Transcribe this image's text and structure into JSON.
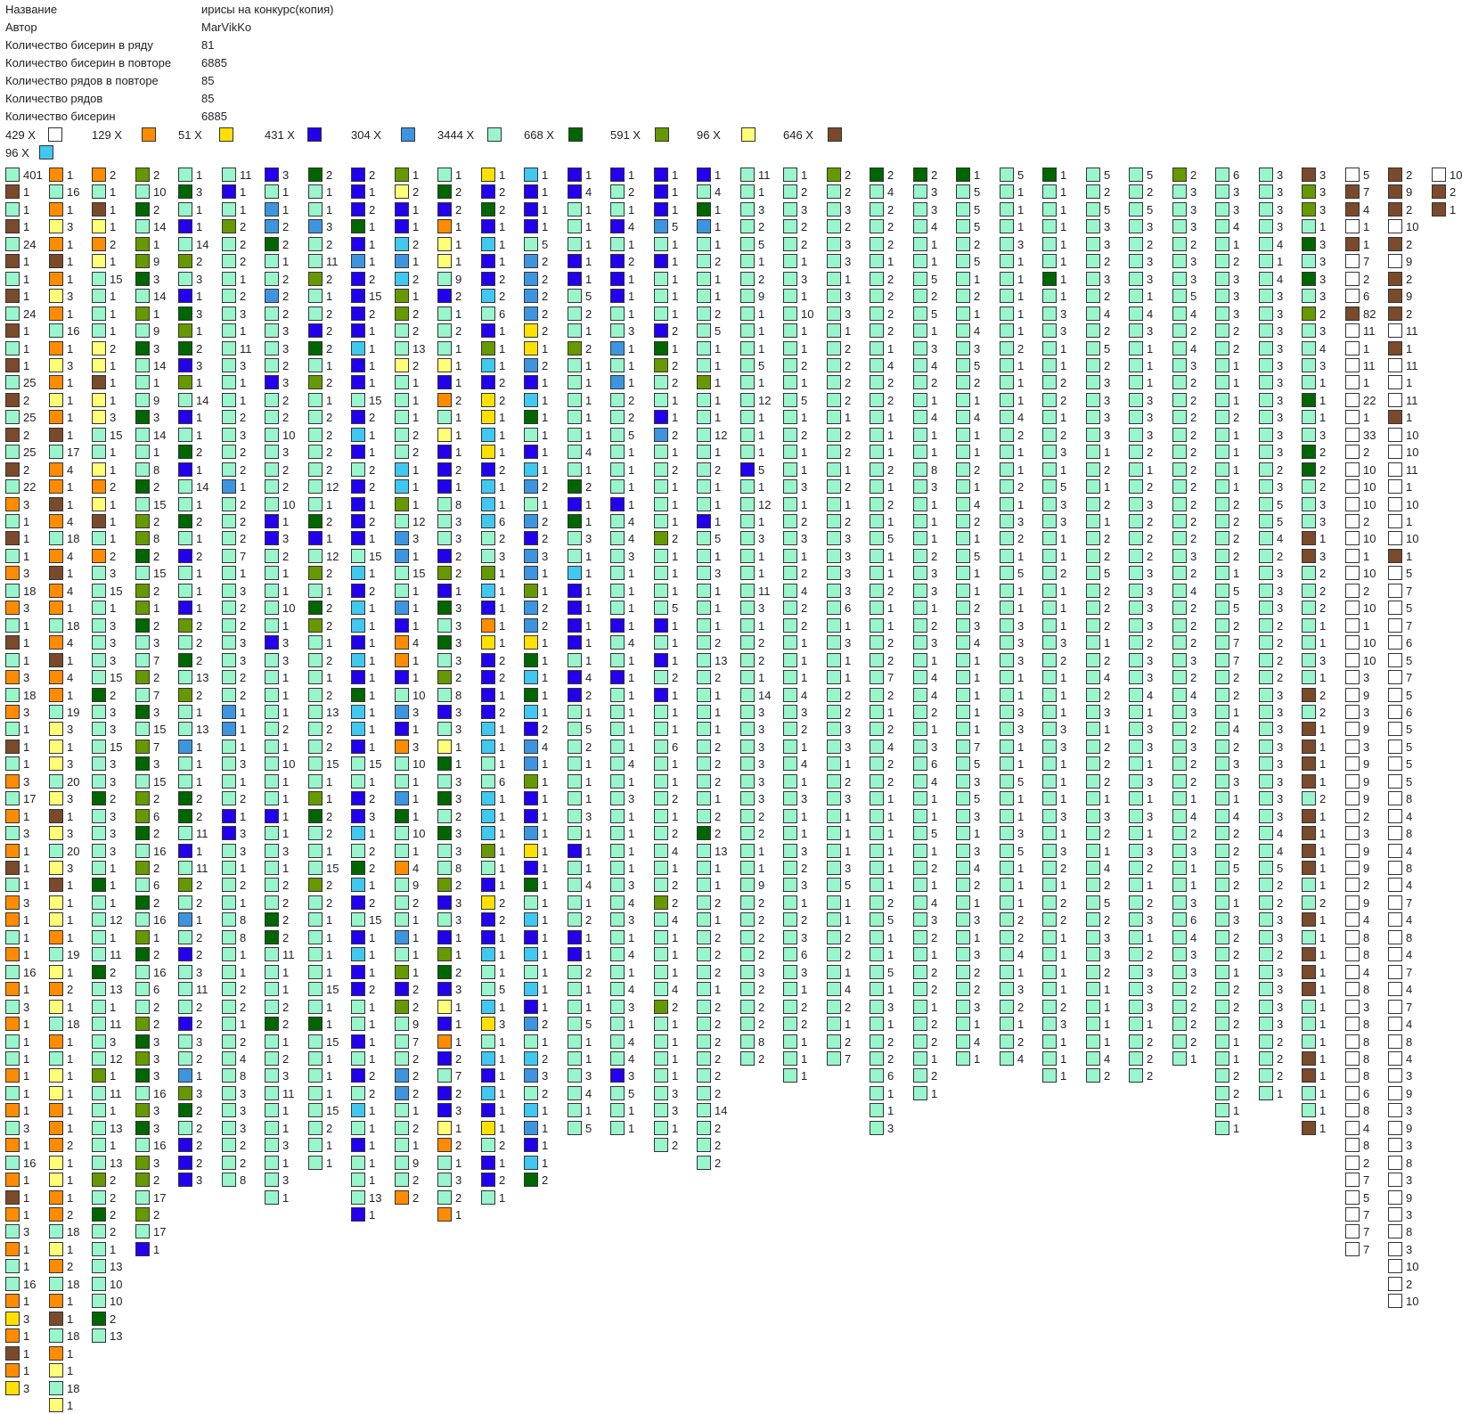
{
  "info": [
    {
      "label": "Название",
      "value": "ирисы на конкурс(копия)"
    },
    {
      "label": "Автор",
      "value": "MarVikKo"
    },
    {
      "label": "Количество бисерин в ряду",
      "value": "81"
    },
    {
      "label": "Количество бисерин в повторе",
      "value": "6885"
    },
    {
      "label": "Количество рядов в повторе",
      "value": "85"
    },
    {
      "label": "Количество рядов",
      "value": "85"
    },
    {
      "label": "Количество бисерин",
      "value": "6885"
    }
  ],
  "palette": {
    "W": "#ffffff",
    "O": "#ff8c00",
    "Y": "#ffe000",
    "B": "#2200ee",
    "S": "#3d95e0",
    "M": "#99f5cc",
    "D": "#006600",
    "G": "#669900",
    "P": "#ffff77",
    "C": "#40c8f0",
    "R": "#7a4a2a"
  },
  "legend": [
    {
      "count": "429 X",
      "color": "W"
    },
    {
      "count": "129 X",
      "color": "O"
    },
    {
      "count": "51 X",
      "color": "Y"
    },
    {
      "count": "431 X",
      "color": "B"
    },
    {
      "count": "304 X",
      "color": "S"
    },
    {
      "count": "3444 X",
      "color": "M"
    },
    {
      "count": "668 X",
      "color": "D"
    },
    {
      "count": "591 X",
      "color": "G"
    },
    {
      "count": "96 X",
      "color": "P"
    },
    {
      "count": "646 X",
      "color": "R"
    },
    {
      "count": "96 X",
      "color": "C"
    }
  ],
  "columns": [
    "M401 R1 M1 R1 M24 R1 M1 R1 M24 R1 M1 R1 M25 R2 M25 R2 M25 R2 M22 O3 M1 R1 M1 O3 M18 O3 M1 R1 M1 O3 M18 O3 M1 R1 M1 O3 M17 O1 M3 O1 R1 M1 O3 O1 M1 O1 M16 O1 M3 O1 M1 M1 O1 M1 O1 M3 O1 M16 O1 R1 O1 M3 O1 M1 M16 O1 Y3 O1 R1 O1 Y3",
    "O1 M16 O1 P3 O1 R1 O1 P3 O1 M16 O1 P3 O1 P1 O1 R1 M17 O4 O1 R1 O4 M18 O4 R1 O4 O1 M18 O4 R1 O4 O1 M19 P3 P1 P3 M20 P3 R1 P3 M20 P3 R1 P1 P1 O1 M19 P1 O2 P1 M18 O1 M1 P1 P1 O1 O1 O2 P1 P1 O1 O2 M18 P1 O2 M18 O1 R1 M18 O1 P1 M18 P1",
    "O2 M1 R1 P1 O2 P1 M15 M1 M1 M1 P2 P1 R1 P1 P3 M15 M1 P1 O2 P1 R1 M1 O2 M3 M15 M1 M3 M3 M3 M15 D2 M3 M3 M15 M3 M3 D2 M3 M3 M3 M1 D1 M1 M12 M1 M11 D2 M13 M1 M11 M3 M12 G1 M11 M1 M13 M1 M13 G2 M2 D2 M2 M1 M13 M10 M10 D2 M13",
    "G2 M10 D2 M14 G1 G9 D3 M14 G1 M9 D3 M14 M1 M9 D3 M14 M1 M8 D2 M15 G2 G8 D2 M15 G2 G1 D2 M3 M7 G2 M7 D3 M15 G7 D3 M15 G2 G6 D2 M16 G2 M6 D2 M16 G1 D2 M16 M6 M2 G2 D3 G3 D3 M16 G3 D3 M16 G3 G2 M17 G2 M17 B1",
    "M1 D3 M1 B1 M14 G2 M3 B1 D3 G1 D2 B3 G1 M14 B1 M1 D2 B1 M14 M1 D2 M1 B2 M1 M1 B1 G2 M2 D2 M13 G2 M1 M13 S1 M1 M1 D2 D2 M11 B1 M11 G2 M2 S1 M2 B2 M3 M11 M2 B2 M3 M2 S1 G3 D2 M2 B2 B2 B3",
    "M11 B1 M1 G2 M2 M2 M1 M2 M3 M1 M11 M3 M1 M1 M2 M3 M2 M2 S1 M2 M2 M2 M7 M1 M3 M2 M2 M3 M3 M2 M2 S1 S1 M1 M3 M1 M2 B1 B3 M3 M1 M2 M1 M8 M8 M1 M1 M2 M2 M1 M2 M4 M8 M3 M3 M3 M2 M2 M8",
    "B3 M1 S1 S2 D2 M1 M2 S2 M2 M3 M3 M2 B3 M2 M2 M10 M3 M2 M2 M10 B1 B3 M2 M1 M1 M10 M1 B3 M3 M1 M1 M1 M2 M1 M10 M1 M1 B1 M1 M3 M1 M2 M2 D2 D2 M11 M1 M1 M2 D2 M1 M2 M3 M11 M1 M1 M3 M1 M3 M1",
    "D2 M1 M1 S3 M2 M11 G2 M1 M2 B2 D2 M1 G2 M1 M2 M2 M2 M2 M12 M1 D2 B1 M12 G2 M1 D2 G2 M1 M2 M1 M2 M13 M2 M2 M15 M1 G1 D2 M2 M1 M15 G2 M2 M1 M1 M1 M1 M15 M1 D1 M15 M1 M1 M1 M15 M2 M1 M1",
    "B2 B1 B2 D1 B1 S1 B2 B15 B2 B1 C1 B1 B1 M15 B2 C1 B1 M2 B2 B1 B2 B1 M15 C1 B2 C1 C1 B1 C1 B1 D1 C1 C1 B1 M15 M1 B2 B3 C1 M2 D2 C1 B2 M15 B1 C1 B1 B2 M1 M1 B1 M1 B2 M2 C1 M1 B1 M1 M1 M13 B1",
    "G1 P2 B1 B1 C2 S1 C2 G1 G2 M2 M13 P2 M1 M1 M1 M2 M2 C1 C1 G1 M12 S3 S1 M15 M1 S1 B1 O4 O1 B1 M10 S3 B1 O3 M10 M1 S1 D1 M10 M1 O4 M9 M2 M1 S1 M1 G1 B2 G2 M9 M7 M2 S2 S2 M1 M2 M1 M9 M2 O2",
    "M1 D2 B2 O1 P1 P1 M9 B2 M1 M2 M1 P1 B1 O2 M1 P1 B1 B2 B1 M8 M3 M3 B2 G2 B1 D3 M3 D3 M3 G2 M8 B3 M3 P1 D1 M3 D3 M2 D3 M3 M8 G2 B3 M3 B1 G1 D2 B3 P1 B1 O1 B2 M7 B2 B3 P1 O2 M1 M3 M2 O1",
    "Y1 B2 D2 B1 C1 B1 B2 C2 M6 B1 G1 C1 B2 Y2 Y1 C1 Y1 B2 C1 C1 C6 M2 M3 G1 C1 B1 O1 Y1 B2 B2 B1 B2 C1 C1 M1 M6 C1 C1 C1 G1 M1 B1 Y2 B2 B1 C1 M1 M5 C1 Y3 M1 C1 B1 C1 B1 Y1 M2 B1 B2 M1",
    "C1 B1 B1 B1 M5 S2 S2 S2 S2 Y2 Y1 S2 B1 C1 D1 M1 B1 C1 S2 M1 S2 B2 S3 S1 G1 S2 S2 Y1 D1 C1 D1 C1 B2 S4 S1 G1 B1 B1 S1 Y1 B1 D1 M1 C1 B1 C1 M1 C1 B1 S2 M1 C2 S3 M2 C1 S1 B1 C1 D2",
    "B1 B4 M1 M1 M1 B1 B1 M5 M2 M1 G2 M1 M1 M1 M1 M1 M4 M1 D2 B1 D1 M3 M1 C1 B1 B1 B1 B1 M1 B4 B2 M1 M5 M2 M1 M1 M1 M3 M1 B1 M1 M4 M1 M2 B1 B1 M2 M1 M1 M5 M1 M1 M3 M4 M1 M5",
    "B1 M2 M1 B4 M1 B2 B1 B1 M1 M3 S1 M1 S1 M2 M2 M5 M1 M1 M1 B1 M4 M4 M3 M1 M1 M1 B1 M4 M1 B1 M1 M1 M1 M1 M4 M1 M3 M1 M1 M1 M1 M3 M4 M3 M1 M4 M1 M4 M3 M1 M4 M4 B3 M5 M1 M1",
    "B1 B1 B1 S5 M1 B1 M1 M1 M1 B2 D1 G2 M2 M1 B1 S2 M1 M2 M1 M1 M1 G2 M1 M1 M1 M5 B1 M1 B1 M2 B1 M1 M1 M6 M1 M1 M2 M1 M2 M4 M1 M2 G2 M4 M1 M1 M1 M4 G2 M1 M1 M1 M1 M3 M3 M1 M2",
    "B1 M4 D1 S1 M1 M2 M1 M1 M2 M5 M1 M1 G1 M1 M1 M12 M1 M2 M1 M1 B1 M5 M1 M3 M1 M1 M1 M2 M13 M2 M1 M1 M1 M2 M2 M2 M1 M2 D2 M13 M1 M1 M2 M1 M2 M2 M2 M1 M2 M2 M2 M2 M2 M2 M14 M2 M2 M2",
    "M11 M1 M3 M2 M5 M1 M2 M9 M1 M1 M1 M5 M1 M12 M1 M1 M1 B5 M1 M12 M1 M3 M1 M1 M11 M3 M1 M2 M2 M1 M14 M3 M3 M3 M3 M3 M3 M2 M2 M1 M1 M9 M2 M2 M2 M2 M3 M2 M2 M2 M8 M2",
    "M1 M2 M3 M2 M2 M1 M3 M1 M10 M1 M1 M2 M1 M5 M1 M2 M1 M1 M3 M1 M2 M3 M1 M2 M4 M2 M2 M1 M1 M1 M4 M3 M2 M1 M4 M1 M3 M1 M1 M3 M2 M3 M1 M2 M3 M6 M3 M1 M2 M2 M1 M1 M1",
    "G2 M2 M3 M2 M3 M3 M1 M3 M3 M1 M2 M2 M2 M2 M1 M2 M2 M1 M2 M1 M2 M3 M3 M3 M3 M6 M1 M3 M1 M1 M2 M2 M3 M3 M1 M2 M3 M1 M1 M1 M3 M5 M1 M1 M2 M2 M1 M4 M2 M1 M2 M7",
    "D2 M4 M2 M2 M2 M1 M2 M2 M2 M2 M1 M4 M2 M2 M1 M1 M1 M2 M1 M2 M1 M5 M1 M1 M2 M1 M1 M2 M2 M7 M2 M1 M2 M4 M2 M2 M1 M1 M1 M1 M1 M1 M2 M5 M1 M1 M5 M1 M3 M1 M2 M2 M6 M1 M1 M3",
    "D2 M3 M3 M4 M1 M1 M5 M2 M5 M1 M3 M4 M2 M1 M4 M1 M1 M8 M3 M1 M1 M1 M2 M3 M3 M1 M2 M3 M1 M4 M4 M2 M1 M3 M6 M4 M1 M1 M5 M1 M2 M1 M4 M3 M2 M1 M2 M2 M1 M2 M2 M1 M2 M1",
    "D1 M5 M5 M5 M2 M5 M1 M2 M1 M4 M3 M5 M2 M1 M4 M1 M1 M2 M1 M4 M2 M1 M5 M1 M1 M2 M3 M4 M1 M1 M1 M1 M1 M7 M5 M3 M5 M3 M1 M3 M4 M2 M1 M3 M1 M3 M2 M2 M3 M1 M4 M1",
    "M5 M1 M1 M1 M3 M1 M1 M1 M1 M1 M2 M1 M1 M1 M4 M2 M1 M1 M2 M1 M3 M2 M1 M5 M1 M1 M3 M3 M3 M1 M1 M3 M3 M1 M1 M5 M1 M1 M3 M5 M1 M1 M1 M2 M2 M4 M1 M3 M2 M1 M2 M4",
    "D1 M1 M1 M1 M1 M1 D1 M1 M3 M3 M1 M1 M2 M2 M1 M2 M3 M1 M5 M3 M3 M1 M1 M2 M1 M1 M1 M3 M2 M1 M1 M1 M3 M3 M1 M1 M1 M3 M1 M3 M2 M1 M2 M2 M1 M1 M1 M1 M2 M3 M1 M1 M1",
    "M5 M2 M5 M3 M3 M2 M3 M2 M4 M2 M5 M2 M3 M3 M3 M3 M1 M2 M1 M2 M1 M2 M2 M5 M2 M2 M2 M1 M2 M4 M2 M3 M1 M2 M2 M2 M1 M3 M2 M1 M4 M2 M5 M2 M3 M3 M2 M1 M1 M1 M1 M4 M2",
    "M5 M2 M5 M3 M2 M3 M3 M1 M4 M3 M1 M1 M1 M3 M3 M3 M2 M1 M2 M3 M2 M2 M2 M3 M3 M3 M3 M2 M3 M3 M4 M1 M3 M3 M1 M3 M1 M3 M1 M3 M2 M1 M2 M3 M1 M2 M3 M3 M3 M1 M2 M2 M2",
    "G2 M3 M3 M3 M2 M3 M3 M5 M4 M2 M4 M3 M2 M2 M2 M2 M2 M2 M2 M2 M2 M2 M3 M2 M4 M2 M2 M2 M3 M2 M4 M3 M2 M3 M2 M2 M1 M4 M2 M3 M1 M1 M3 M6 M4 M3 M3 M2 M2 M2 M2 M1",
    "M6 M3 M3 M4 M1 M2 M3 M3 M3 M2 M2 M1 M1 M1 M2 M1 M1 M1 M1 M2 M2 M2 M2 M1 M5 M5 M2 M7 M7 M2 M2 M1 M4 M2 M3 M3 M1 M4 M2 M2 M5 M2 M1 M3 M2 M2 M1 M2 M2 M2 M1 M1 M2 M2 M1 M1",
    "M3 M3 M3 M3 M4 M1 M4 M3 M3 M3 M3 M3 M3 M3 M3 M3 M3 M2 M3 M5 M5 M4 M2 M3 M3 M3 M2 M2 M2 M2 M3 M3 M3 M3 M3 M3 M3 M3 M4 M4 M5 M2 M2 M3 M3 M2 M3 M3 M3 M3 M2 M2 M2 M1",
    "R3 G3 G3 M1 D3 M3 D3 M3 G2 M3 M4 M3 M1 D1 M1 M3 D2 D2 M2 M3 M3 R1 R3 M2 M2 M2 M1 M1 M3 M1 R2 M2 R1 R1 R1 R1 M2 R1 R1 R1 R1 M1 M2 R1 M1 R1 R1 R1 M1 M1 M1 R1 R1 M1 M1 R1",
    "W5 R7 R4 W1 R1 W7 W2 W6 R82 W11 W1 W11 W1 W22 W1 W33 W2 W10 W10 W10 W2 W10 W1 W10 W2 W10 W1 W10 W10 W3 W9 W3 W9 W3 W9 W9 W9 W2 W3 W9 W9 W2 W9 W4 W8 W8 W4 W8 W3 W8 W8 W8 W8 W6 W8 W4 W8 W2 W7 W5 W7 W7 W7",
    "R2 R9 R2 W10 R2 W9 R2 R9 R2 W11 R1 W11 W1 W11 R1 W10 W10 W11 W1 W10 W1 W10 R1 W5 W7 W5 W7 W6 W5 W7 W5 W6 W5 W5 W5 W5 W8 W4 W8 W4 W8 W4 W7 W4 W8 W4 W7 W4 W7 W4 W8 W4 W3 W9 W3 W9 W3 W8 W3 W9 W3 W8 W3 W10 W2 W10",
    "W10 R2 R1"
  ]
}
